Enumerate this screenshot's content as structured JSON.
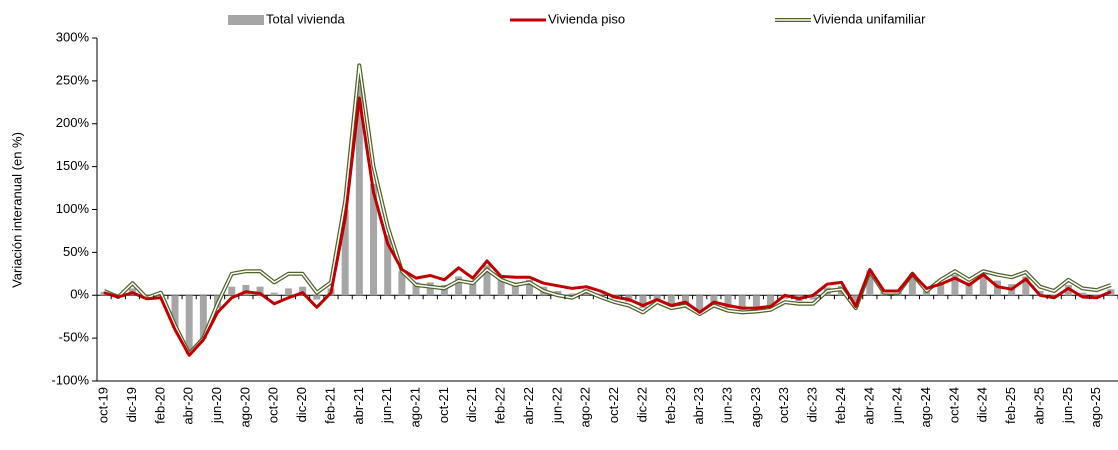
{
  "chart_data": {
    "type": "bar",
    "y_axis_label": "Variación interanual (en %)",
    "legend": "top",
    "categories": [
      "oct-19",
      null,
      "dic-19",
      null,
      "feb-20",
      null,
      "abr-20",
      null,
      "jun-20",
      null,
      "ago-20",
      null,
      "oct-20",
      null,
      "dic-20",
      null,
      "feb-21",
      null,
      "abr-21",
      null,
      "jun-21",
      null,
      "ago-21",
      null,
      "oct-21",
      null,
      "dic-21",
      null,
      "feb-22",
      null,
      "abr-22",
      null,
      "jun-22",
      null,
      "ago-22",
      null,
      "oct-22",
      null,
      "dic-22",
      null,
      "feb-23",
      null,
      "abr-23",
      null,
      "jun-23",
      null,
      "ago-23",
      null,
      "oct-23",
      null,
      "dic-23",
      null,
      "feb-24",
      null,
      "abr-24",
      null,
      "jun-24",
      null,
      "ago-24",
      null,
      "oct-24",
      null,
      "dic-24",
      null,
      "feb-25",
      null,
      "abr-25",
      null,
      "jun-25",
      null,
      "ago-25",
      null
    ],
    "series": [
      {
        "name": "Total vivienda",
        "type": "bar",
        "color": "#a6a6a6",
        "values": [
          4,
          -2,
          8,
          -4,
          0,
          -38,
          -69,
          -51,
          -15,
          10,
          12,
          10,
          3,
          8,
          10,
          -5,
          8,
          100,
          245,
          130,
          70,
          28,
          15,
          15,
          12,
          22,
          17,
          35,
          20,
          15,
          18,
          10,
          5,
          2,
          7,
          2,
          -4,
          -8,
          -15,
          -6,
          -13,
          -10,
          -21,
          -10,
          -15,
          -17,
          -17,
          -15,
          -4,
          -7,
          -5,
          9,
          11,
          -14,
          29,
          4,
          4,
          25,
          7,
          15,
          24,
          15,
          26,
          17,
          13,
          22,
          5,
          1,
          12,
          3,
          1,
          7
        ]
      },
      {
        "name": "Vivienda piso",
        "type": "line",
        "color": "#c00000",
        "values": [
          3,
          -2,
          3,
          -4,
          -3,
          -40,
          -70,
          -52,
          -20,
          -3,
          4,
          2,
          -10,
          -3,
          3,
          -14,
          3,
          90,
          230,
          120,
          60,
          30,
          20,
          23,
          18,
          32,
          20,
          40,
          22,
          21,
          21,
          14,
          11,
          8,
          10,
          5,
          -2,
          -5,
          -12,
          -5,
          -12,
          -8,
          -20,
          -8,
          -12,
          -15,
          -15,
          -13,
          0,
          -4,
          0,
          13,
          15,
          -13,
          30,
          5,
          5,
          25,
          8,
          13,
          20,
          12,
          24,
          10,
          7,
          19,
          0,
          -3,
          8,
          -2,
          -3,
          4
        ]
      },
      {
        "name": "Vivienda unifamiliar",
        "type": "outline",
        "color": "#4f6228",
        "values": [
          5,
          -2,
          14,
          -3,
          3,
          -35,
          -68,
          -50,
          -10,
          25,
          28,
          28,
          15,
          25,
          25,
          3,
          15,
          110,
          268,
          150,
          80,
          28,
          12,
          10,
          8,
          17,
          14,
          30,
          18,
          12,
          15,
          5,
          0,
          -3,
          5,
          -2,
          -8,
          -12,
          -20,
          -8,
          -15,
          -12,
          -22,
          -12,
          -18,
          -20,
          -19,
          -17,
          -8,
          -10,
          -10,
          5,
          7,
          -15,
          28,
          3,
          3,
          25,
          5,
          18,
          28,
          18,
          28,
          24,
          21,
          27,
          10,
          5,
          18,
          8,
          6,
          12
        ]
      }
    ],
    "ylim": [
      -100,
      300
    ],
    "yticks": [
      {
        "value": -100,
        "label": "-100%"
      },
      {
        "value": -50,
        "label": "-50%"
      },
      {
        "value": 0,
        "label": "0%"
      },
      {
        "value": 50,
        "label": "50%"
      },
      {
        "value": 100,
        "label": "100%"
      },
      {
        "value": 150,
        "label": "150%"
      },
      {
        "value": 200,
        "label": "200%"
      },
      {
        "value": 250,
        "label": "250%"
      },
      {
        "value": 300,
        "label": "300%"
      }
    ]
  }
}
